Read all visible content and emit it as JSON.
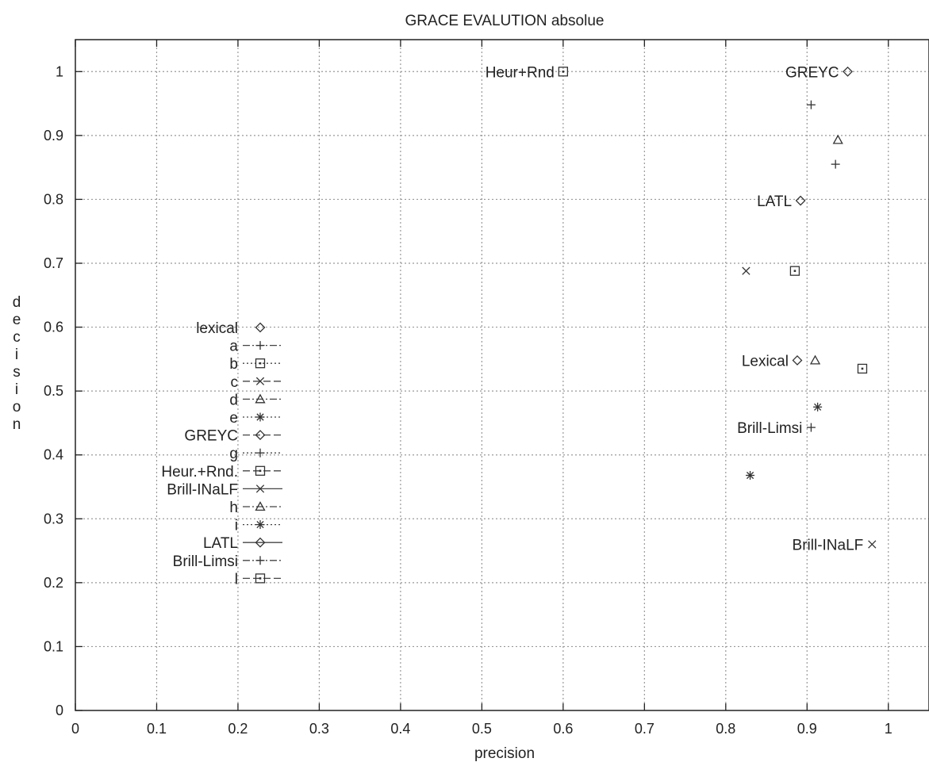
{
  "chart_data": {
    "type": "scatter",
    "title": "GRACE EVALUTION absolue",
    "xlabel": "precision",
    "ylabel": "decision",
    "xlim": [
      0,
      1.05
    ],
    "ylim": [
      0,
      1.05
    ],
    "x_ticks": [
      0,
      0.1,
      0.2,
      0.3,
      0.4,
      0.5,
      0.6,
      0.7,
      0.8,
      0.9,
      1
    ],
    "y_ticks": [
      0,
      0.1,
      0.2,
      0.3,
      0.4,
      0.5,
      0.6,
      0.7,
      0.8,
      0.9,
      1
    ],
    "x_tick_labels": [
      "0",
      "0.1",
      "0.2",
      "0.3",
      "0.4",
      "0.5",
      "0.6",
      "0.7",
      "0.8",
      "0.9",
      "1"
    ],
    "y_tick_labels": [
      "0",
      "0.1",
      "0.2",
      "0.3",
      "0.4",
      "0.5",
      "0.6",
      "0.7",
      "0.8",
      "0.9",
      "1"
    ],
    "grid": true,
    "legend_position": "left",
    "series": [
      {
        "name": "lexical",
        "marker": "diamond",
        "line": "none",
        "points": [
          {
            "x": 0.888,
            "y": 0.548,
            "label": "Lexical"
          }
        ]
      },
      {
        "name": "a",
        "marker": "plus",
        "line": "dash-dot",
        "points": [
          {
            "x": 0.935,
            "y": 0.855,
            "label": ""
          }
        ]
      },
      {
        "name": "b",
        "marker": "square",
        "line": "dotted",
        "points": [
          {
            "x": 0.885,
            "y": 0.688,
            "label": ""
          }
        ]
      },
      {
        "name": "c",
        "marker": "cross",
        "line": "dash",
        "points": [
          {
            "x": 0.825,
            "y": 0.688,
            "label": ""
          }
        ]
      },
      {
        "name": "d",
        "marker": "triangle",
        "line": "dash-dot",
        "points": [
          {
            "x": 0.91,
            "y": 0.548,
            "label": ""
          }
        ]
      },
      {
        "name": "e",
        "marker": "star",
        "line": "dotted",
        "points": [
          {
            "x": 0.913,
            "y": 0.475,
            "label": ""
          }
        ]
      },
      {
        "name": "GREYC",
        "marker": "diamond",
        "line": "dash",
        "points": [
          {
            "x": 0.95,
            "y": 1.0,
            "label": "GREYC"
          }
        ]
      },
      {
        "name": "g",
        "marker": "plus",
        "line": "dotted",
        "points": [
          {
            "x": 0.905,
            "y": 0.948,
            "label": ""
          }
        ]
      },
      {
        "name": "Heur.+Rnd.",
        "marker": "square",
        "line": "dash",
        "points": [
          {
            "x": 0.6,
            "y": 1.0,
            "label": "Heur+Rnd"
          }
        ]
      },
      {
        "name": "Brill-INaLF",
        "marker": "cross",
        "line": "solid",
        "points": [
          {
            "x": 0.98,
            "y": 0.26,
            "label": "Brill-INaLF"
          }
        ]
      },
      {
        "name": "h",
        "marker": "triangle",
        "line": "dash-dot",
        "points": [
          {
            "x": 0.938,
            "y": 0.893,
            "label": ""
          }
        ]
      },
      {
        "name": "i",
        "marker": "star",
        "line": "dotted",
        "points": [
          {
            "x": 0.83,
            "y": 0.368,
            "label": ""
          }
        ]
      },
      {
        "name": "LATL",
        "marker": "diamond",
        "line": "solid",
        "points": [
          {
            "x": 0.892,
            "y": 0.798,
            "label": "LATL"
          }
        ]
      },
      {
        "name": "Brill-Limsi",
        "marker": "plus",
        "line": "dash-dot",
        "points": [
          {
            "x": 0.905,
            "y": 0.443,
            "label": "Brill-Limsi"
          }
        ]
      },
      {
        "name": "l",
        "marker": "square",
        "line": "dash",
        "points": [
          {
            "x": 0.968,
            "y": 0.535,
            "label": ""
          }
        ]
      }
    ]
  }
}
